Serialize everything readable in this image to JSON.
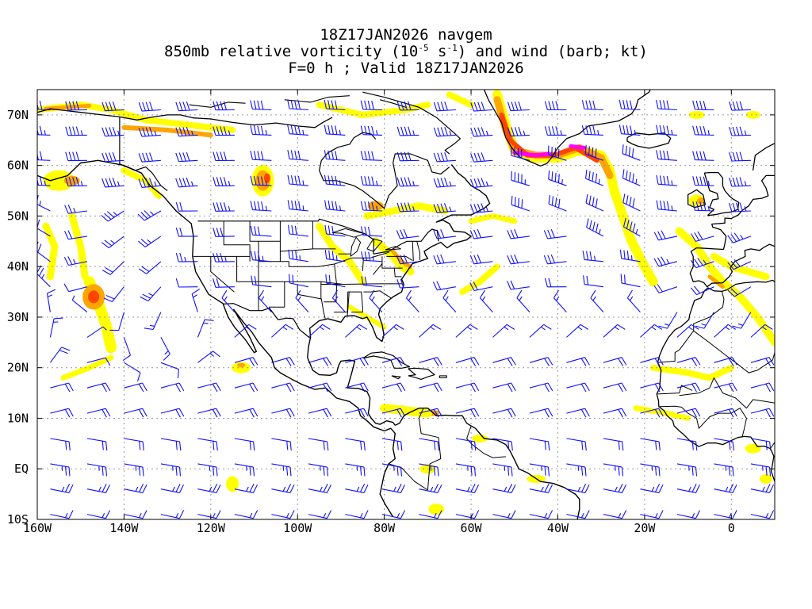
{
  "title": {
    "line1": "18Z17JAN2026 navgem",
    "line2_pre": "850mb relative vorticity (10",
    "line2_exp1": "-5",
    "line2_mid": " s",
    "line2_exp2": "-1",
    "line2_post": ") and wind (barb; kt)",
    "line3": "F=0 h ; Valid 18Z17JAN2026"
  },
  "map": {
    "lon_range": [
      -160,
      10
    ],
    "lat_range": [
      -10,
      75
    ],
    "lat_ticks": [
      {
        "value": 70,
        "label": "70N"
      },
      {
        "value": 60,
        "label": "60N"
      },
      {
        "value": 50,
        "label": "50N"
      },
      {
        "value": 40,
        "label": "40N"
      },
      {
        "value": 30,
        "label": "30N"
      },
      {
        "value": 20,
        "label": "20N"
      },
      {
        "value": 10,
        "label": "10N"
      },
      {
        "value": 0,
        "label": "EQ"
      },
      {
        "value": -10,
        "label": "10S"
      }
    ],
    "lon_ticks": [
      {
        "value": -160,
        "label": "160W"
      },
      {
        "value": -140,
        "label": "140W"
      },
      {
        "value": -120,
        "label": "120W"
      },
      {
        "value": -100,
        "label": "100W"
      },
      {
        "value": -80,
        "label": "80W"
      },
      {
        "value": -60,
        "label": "60W"
      },
      {
        "value": -40,
        "label": "40W"
      },
      {
        "value": -20,
        "label": "20W"
      },
      {
        "value": 0,
        "label": "0"
      }
    ],
    "colors": {
      "vorticity_low": "#ffff00",
      "vorticity_mid": "#ffa500",
      "vorticity_high": "#ff4400",
      "vorticity_max": "#ff00ff",
      "wind_barb": "#1010ff",
      "coastline": "#000000",
      "grid": "#999999"
    }
  }
}
